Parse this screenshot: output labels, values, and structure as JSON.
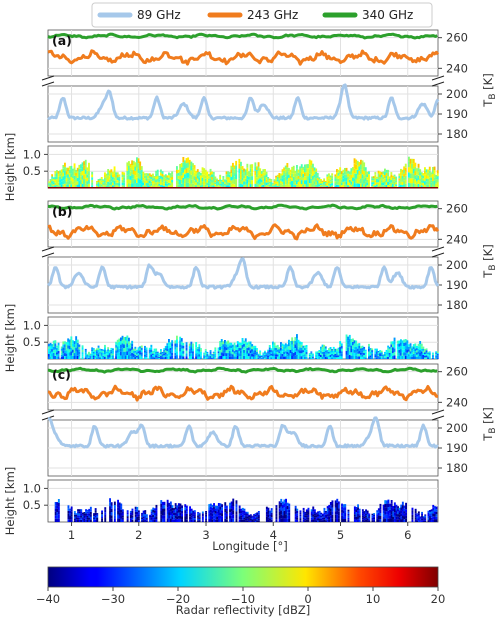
{
  "chart_data": {
    "type": "line",
    "legend": {
      "placement": "top",
      "entries": [
        {
          "name": "89 GHz",
          "color": "#a6c8ea"
        },
        {
          "name": "243 GHz",
          "color": "#f07c1e"
        },
        {
          "name": "340 GHz",
          "color": "#2ca02c"
        }
      ]
    },
    "x_axis": {
      "label": "Longitude [°]",
      "range": [
        0.65,
        6.45
      ],
      "ticks": [
        "1",
        "2",
        "3",
        "4",
        "5",
        "6"
      ]
    },
    "tb_axis": {
      "label_main": "T",
      "label_sub": "B",
      "label_unit": "[K]",
      "upper_range": [
        235,
        265
      ],
      "upper_ticks": [
        "240",
        "260"
      ],
      "lower_range": [
        176,
        204
      ],
      "lower_ticks": [
        "180",
        "190",
        "200"
      ]
    },
    "height_axis": {
      "label": "Height [km]",
      "range": [
        0,
        1.25
      ],
      "ticks": [
        "0.5",
        "1.0"
      ]
    },
    "panels": [
      {
        "letter": "(a)",
        "tb": {
          "s340": 261,
          "s243": 247,
          "s89": 188
        },
        "radar": {
          "base": 0.55,
          "amp": 0.38,
          "reflectivity_center": -8,
          "ground_clutter": true,
          "start": 0.65,
          "end": 6.45,
          "density": 0.92
        }
      },
      {
        "letter": "(b)",
        "tb": {
          "s340": 261,
          "s243": 245,
          "s89": 189
        },
        "radar": {
          "base": 0.42,
          "amp": 0.32,
          "reflectivity_center": -20,
          "ground_clutter": false,
          "start": 0.65,
          "end": 6.45,
          "density": 0.9
        }
      },
      {
        "letter": "(c)",
        "tb": {
          "s340": 261,
          "s243": 246,
          "s89": 191
        },
        "radar": {
          "base": 0.45,
          "amp": 0.28,
          "reflectivity_center": -34,
          "ground_clutter": false,
          "start": 0.75,
          "end": 6.45,
          "density": 0.72
        }
      }
    ],
    "colorbar": {
      "label": "Radar reflectivity [dBZ]",
      "range": [
        -40,
        20
      ],
      "ticks": [
        "−40",
        "−30",
        "−20",
        "−10",
        "0",
        "10",
        "20"
      ],
      "colormap": "jet"
    },
    "grid": true
  }
}
